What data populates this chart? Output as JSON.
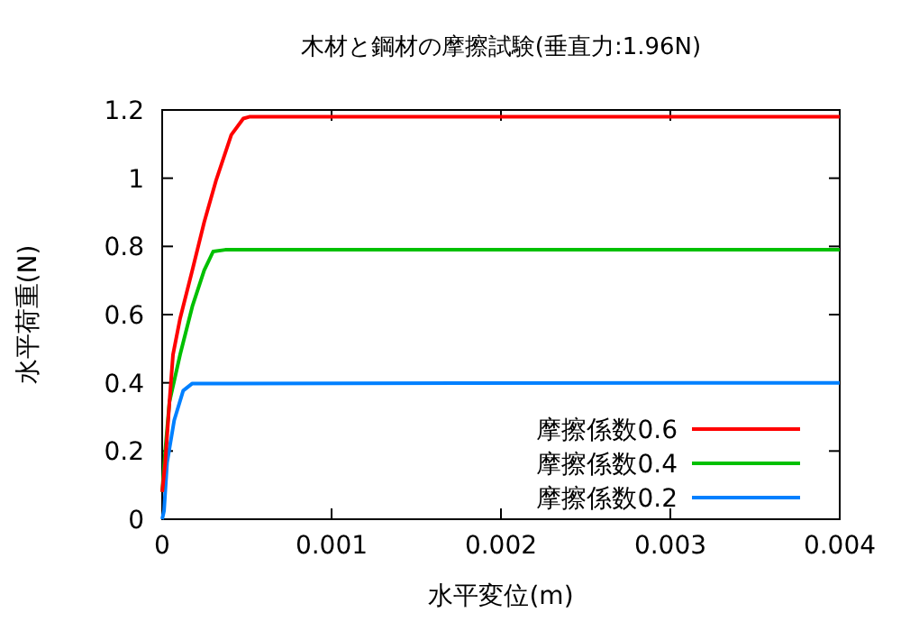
{
  "chart_data": {
    "type": "line",
    "title": "木材と鋼材の摩擦試験(垂直力:1.96N)",
    "xlabel": "水平変位(m)",
    "ylabel": "水平荷重(N)",
    "xlim": [
      0,
      0.004
    ],
    "ylim": [
      0,
      1.2
    ],
    "xticks": [
      0,
      0.001,
      0.002,
      0.003,
      0.004
    ],
    "yticks": [
      0,
      0.2,
      0.4,
      0.6,
      0.8,
      1,
      1.2
    ],
    "legend": "bottom right",
    "grid": false,
    "marker": "none",
    "line_style": "solid",
    "series": [
      {
        "name": "摩擦係数0.6",
        "color": "#ff0000",
        "x": [
          0,
          1.8e-05,
          4.3e-05,
          6.4e-05,
          0.000106,
          0.000178,
          0.000248,
          0.000319,
          0.000408,
          0.000479,
          0.000514,
          0.004
        ],
        "values": [
          0.08,
          0.166,
          0.344,
          0.483,
          0.589,
          0.73,
          0.871,
          0.995,
          1.127,
          1.175,
          1.18,
          1.18
        ]
      },
      {
        "name": "摩擦係数0.4",
        "color": "#00c000",
        "x": [
          0,
          1.8e-05,
          4.3e-05,
          0.000106,
          0.000178,
          0.000248,
          0.000301,
          0.000372,
          0.004
        ],
        "values": [
          0.08,
          0.201,
          0.344,
          0.483,
          0.624,
          0.73,
          0.785,
          0.79,
          0.79
        ]
      },
      {
        "name": "摩擦係数0.2",
        "color": "#0080ff",
        "x": [
          0,
          1.1e-05,
          2.9e-05,
          7.1e-05,
          0.000124,
          0.000178,
          0.004
        ],
        "values": [
          0,
          0.025,
          0.166,
          0.29,
          0.377,
          0.398,
          0.4
        ]
      }
    ]
  }
}
